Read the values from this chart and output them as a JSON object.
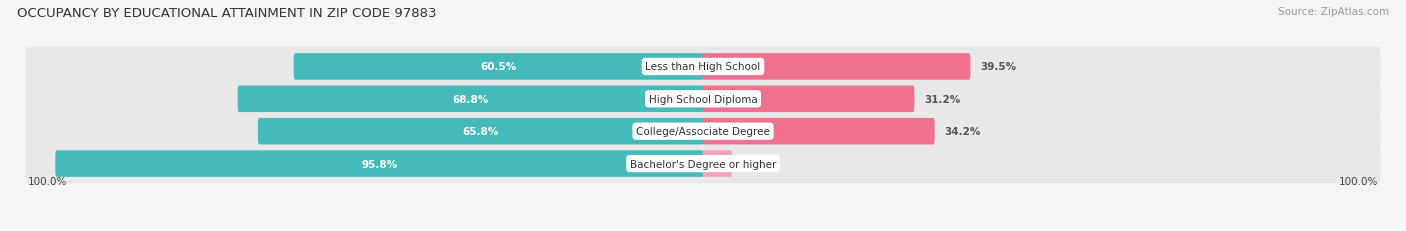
{
  "title": "OCCUPANCY BY EDUCATIONAL ATTAINMENT IN ZIP CODE 97883",
  "source": "Source: ZipAtlas.com",
  "categories": [
    "Less than High School",
    "High School Diploma",
    "College/Associate Degree",
    "Bachelor's Degree or higher"
  ],
  "owner_values": [
    60.5,
    68.8,
    65.8,
    95.8
  ],
  "renter_values": [
    39.5,
    31.2,
    34.2,
    4.2
  ],
  "owner_color": "#45BABA",
  "renter_color": "#F07090",
  "renter_color_light": "#F0A0B8",
  "background_color": "#f5f5f5",
  "bar_bg_color": "#e8e8e8",
  "title_fontsize": 9.5,
  "source_fontsize": 7.5,
  "label_fontsize": 7.5,
  "bar_label_fontsize": 7.5,
  "legend_fontsize": 8,
  "axis_label_fontsize": 7.5,
  "bar_height": 0.62,
  "left_label": "100.0%",
  "right_label": "100.0%"
}
